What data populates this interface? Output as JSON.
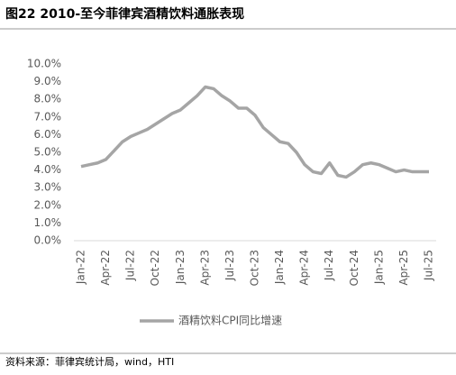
{
  "chart_data": {
    "type": "line",
    "title": "图22 2010-至今菲律宾酒精饮料通胀表现",
    "source": "资料来源：菲律宾统计局，wind，HTI",
    "categories": [
      "Jan-22",
      null,
      null,
      "Apr-22",
      null,
      null,
      "Jul-22",
      null,
      null,
      "Oct-22",
      null,
      null,
      "Jan-23",
      null,
      null,
      "Apr-23",
      null,
      null,
      "Jul-23",
      null,
      null,
      "Oct-23",
      null,
      null,
      "Jan-24",
      null,
      null,
      "Apr-24",
      null,
      null,
      "Jul-24",
      null,
      null,
      "Oct-24",
      null,
      null,
      "Jan-25",
      null,
      null,
      "Apr-25",
      null,
      null,
      "Jul-25"
    ],
    "series": [
      {
        "name": "酒精饮料CPI同比增速",
        "color": "#a5a5a5",
        "values": [
          4.2,
          4.3,
          4.4,
          4.6,
          5.1,
          5.6,
          5.9,
          6.1,
          6.3,
          6.6,
          6.9,
          7.2,
          7.4,
          7.8,
          8.2,
          8.7,
          8.6,
          8.2,
          7.9,
          7.5,
          7.5,
          7.1,
          6.4,
          6.0,
          5.6,
          5.5,
          5.0,
          4.3,
          3.9,
          3.8,
          4.4,
          3.7,
          3.6,
          3.9,
          4.3,
          4.4,
          4.3,
          4.1,
          3.9,
          4.0,
          3.9,
          3.9,
          3.9
        ]
      }
    ],
    "ylim": [
      0,
      10
    ],
    "yticks": [
      {
        "value": 0,
        "label": "0.0%"
      },
      {
        "value": 1,
        "label": "1.0%"
      },
      {
        "value": 2,
        "label": "2.0%"
      },
      {
        "value": 3,
        "label": "3.0%"
      },
      {
        "value": 4,
        "label": "4.0%"
      },
      {
        "value": 5,
        "label": "5.0%"
      },
      {
        "value": 6,
        "label": "6.0%"
      },
      {
        "value": 7,
        "label": "7.0%"
      },
      {
        "value": 8,
        "label": "8.0%"
      },
      {
        "value": 9,
        "label": "9.0%"
      },
      {
        "value": 10,
        "label": "10.0%"
      }
    ],
    "legend": "bottom"
  }
}
